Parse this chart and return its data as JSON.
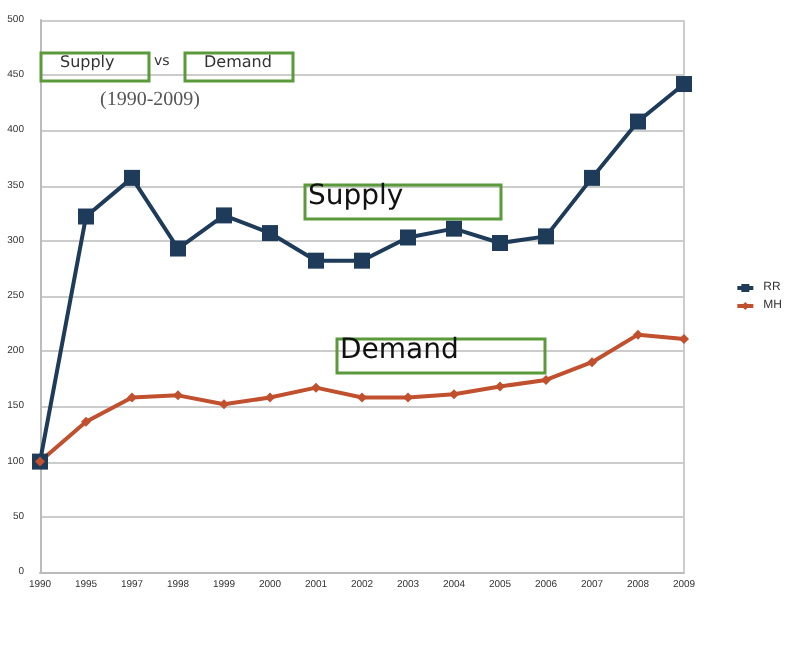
{
  "chart_data": {
    "type": "line",
    "title": "Supply vs Demand",
    "subtitle": "(1990-2009)",
    "annotations": [
      "Supply",
      "Demand"
    ],
    "categories": [
      "1990",
      "1995",
      "1997",
      "1998",
      "1999",
      "2000",
      "2001",
      "2002",
      "2003",
      "2004",
      "2005",
      "2006",
      "2007",
      "2008",
      "2009"
    ],
    "series": [
      {
        "name": "RR",
        "color": "#1f3b5a",
        "marker": "square",
        "values": [
          100,
          322,
          357,
          293,
          323,
          307,
          282,
          282,
          303,
          311,
          298,
          304,
          357,
          408,
          442
        ]
      },
      {
        "name": "MH",
        "color": "#c0502e",
        "marker": "diamond",
        "values": [
          100,
          136,
          158,
          160,
          152,
          158,
          167,
          158,
          158,
          161,
          168,
          174,
          190,
          215,
          211
        ]
      }
    ],
    "ylim": [
      0,
      500
    ],
    "yticks": [
      0,
      50,
      100,
      150,
      200,
      250,
      300,
      350,
      400,
      450,
      500
    ],
    "grid": "y",
    "legend": "right"
  }
}
